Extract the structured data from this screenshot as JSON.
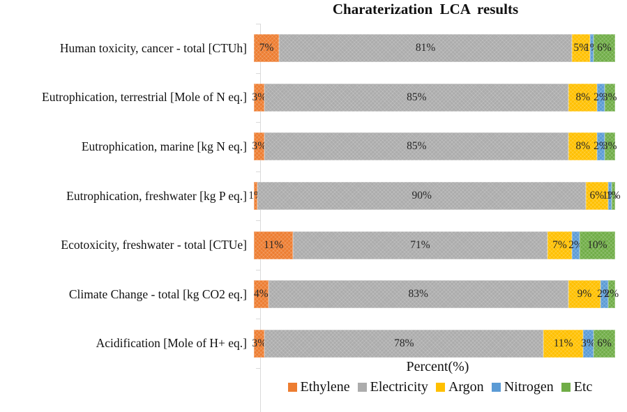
{
  "title": "Charaterization LCA results",
  "xlabel": "Percent(%)",
  "colors": {
    "ethylene": "#ED7D31",
    "electricity": "#ACACAC",
    "argon": "#FFC000",
    "nitrogen": "#5B9BD5",
    "etc": "#70AD47",
    "axis": "#D9D9D9"
  },
  "chart_data": {
    "type": "bar",
    "orientation": "horizontal",
    "stacked": true,
    "title": "Charaterization LCA results",
    "xlabel": "Percent(%)",
    "legend_position": "bottom",
    "value_suffix": "%",
    "categories": [
      "Human toxicity, cancer - total [CTUh]",
      "Eutrophication, terrestrial [Mole of N eq.]",
      "Eutrophication, marine [kg N eq.]",
      "Eutrophication, freshwater [kg P eq.]",
      "Ecotoxicity, freshwater - total [CTUe]",
      "Climate Change - total [kg CO2 eq.]",
      "Acidification [Mole of H+ eq.]"
    ],
    "series": [
      {
        "name": "Ethylene",
        "color": "#ED7D31",
        "values": [
          7,
          3,
          3,
          1,
          11,
          4,
          3
        ]
      },
      {
        "name": "Electricity",
        "color": "#ACACAC",
        "values": [
          81,
          85,
          85,
          90,
          71,
          83,
          78
        ]
      },
      {
        "name": "Argon",
        "color": "#FFC000",
        "values": [
          5,
          8,
          8,
          6,
          7,
          9,
          11
        ]
      },
      {
        "name": "Nitrogen",
        "color": "#5B9BD5",
        "values": [
          1,
          2,
          2,
          1,
          2,
          2,
          3
        ]
      },
      {
        "name": "Etc",
        "color": "#70AD47",
        "values": [
          6,
          3,
          3,
          1,
          10,
          2,
          6
        ]
      }
    ]
  }
}
